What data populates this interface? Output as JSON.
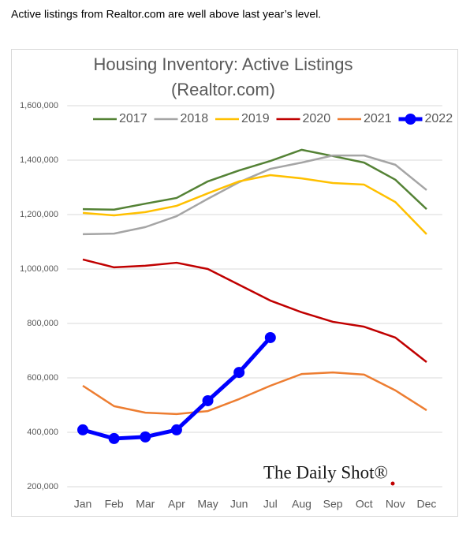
{
  "caption": "Active listings from Realtor.com are well above last year’s level.",
  "chart_data": {
    "type": "line",
    "title": "Housing Inventory: Active Listings",
    "subtitle": "(Realtor.com)",
    "annotation": "The Daily Shot®",
    "categories": [
      "Jan",
      "Feb",
      "Mar",
      "Apr",
      "May",
      "Jun",
      "Jul",
      "Aug",
      "Sep",
      "Oct",
      "Nov",
      "Dec"
    ],
    "series": [
      {
        "name": "2017",
        "color": "#548235",
        "values": [
          1220000,
          1218000,
          1240000,
          1261000,
          1322000,
          1362000,
          1397000,
          1438000,
          1415000,
          1391000,
          1328000,
          1220000
        ]
      },
      {
        "name": "2018",
        "color": "#a5a5a5",
        "values": [
          1128000,
          1130000,
          1154000,
          1194000,
          1258000,
          1319000,
          1368000,
          1391000,
          1417000,
          1417000,
          1383000,
          1290000
        ]
      },
      {
        "name": "2019",
        "color": "#ffc000",
        "values": [
          1206000,
          1197000,
          1209000,
          1232000,
          1278000,
          1322000,
          1345000,
          1333000,
          1316000,
          1310000,
          1246000,
          1128000
        ]
      },
      {
        "name": "2020",
        "color": "#c00000",
        "values": [
          1035000,
          1006000,
          1012000,
          1023000,
          1000000,
          942000,
          884000,
          841000,
          806000,
          788000,
          748000,
          658000
        ]
      },
      {
        "name": "2021",
        "color": "#ed7d31",
        "values": [
          571000,
          496000,
          472000,
          467000,
          478000,
          522000,
          571000,
          614000,
          620000,
          612000,
          554000,
          481000
        ]
      },
      {
        "name": "2022",
        "color": "#0000ff",
        "markers": true,
        "values": [
          409000,
          377000,
          383000,
          409000,
          516000,
          620000,
          748000,
          null,
          null,
          null,
          null,
          null
        ]
      }
    ],
    "ylim": [
      200000,
      1600000
    ],
    "yticks": [
      {
        "value": 200000,
        "label": "200,000"
      },
      {
        "value": 400000,
        "label": "400,000"
      },
      {
        "value": 600000,
        "label": "600,000"
      },
      {
        "value": 800000,
        "label": "800,000"
      },
      {
        "value": 1000000,
        "label": "1,000,000"
      },
      {
        "value": 1200000,
        "label": "1,200,000"
      },
      {
        "value": 1400000,
        "label": "1,400,000"
      },
      {
        "value": 1600000,
        "label": "1,600,000"
      }
    ],
    "grid": true,
    "legend": "top"
  }
}
